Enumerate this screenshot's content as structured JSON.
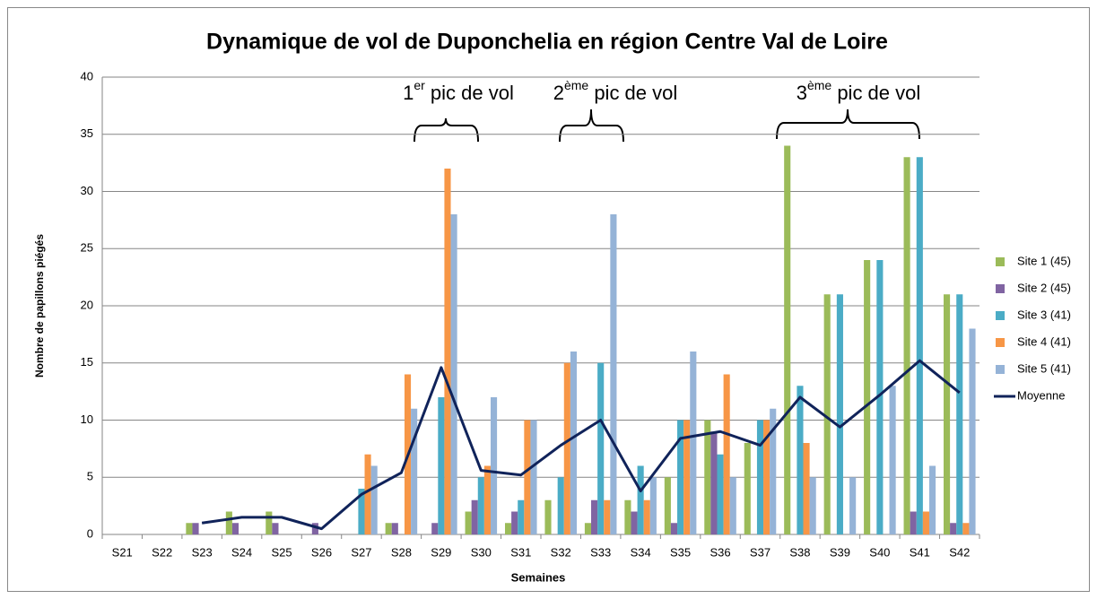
{
  "chart_data": {
    "type": "bar",
    "title": "Dynamique de vol de Duponchelia en région Centre Val de Loire",
    "x_label": "Semaines",
    "y_label": "Nombre de papillons piégés",
    "categories": [
      "S21",
      "S22",
      "S23",
      "S24",
      "S25",
      "S26",
      "S27",
      "S28",
      "S29",
      "S30",
      "S31",
      "S32",
      "S33",
      "S34",
      "S35",
      "S36",
      "S37",
      "S38",
      "S39",
      "S40",
      "S41",
      "S42"
    ],
    "series": [
      {
        "name": "Site 1 (45)",
        "color": "#9bbb59",
        "values": [
          0,
          0,
          1,
          2,
          2,
          0,
          0,
          1,
          0,
          2,
          1,
          3,
          1,
          3,
          5,
          10,
          8,
          34,
          21,
          24,
          33,
          21
        ]
      },
      {
        "name": "Site 2 (45)",
        "color": "#8064a2",
        "values": [
          0,
          0,
          1,
          1,
          1,
          1,
          0,
          1,
          1,
          3,
          2,
          0,
          3,
          2,
          1,
          9,
          0,
          0,
          0,
          0,
          2,
          1
        ]
      },
      {
        "name": "Site 3 (41)",
        "color": "#4bacc6",
        "values": [
          0,
          0,
          0,
          0,
          0,
          0,
          4,
          0,
          12,
          5,
          3,
          5,
          15,
          6,
          10,
          7,
          10,
          13,
          21,
          24,
          33,
          21
        ]
      },
      {
        "name": "Site 4 (41)",
        "color": "#f79646",
        "values": [
          0,
          0,
          0,
          0,
          0,
          0,
          7,
          14,
          32,
          6,
          10,
          15,
          3,
          3,
          10,
          14,
          10,
          8,
          0,
          0,
          2,
          1
        ]
      },
      {
        "name": "Site 5 (41)",
        "color": "#95b3d7",
        "values": [
          0,
          0,
          0,
          0,
          0,
          0,
          6,
          11,
          28,
          12,
          10,
          16,
          28,
          5,
          16,
          5,
          11,
          5,
          5,
          13,
          6,
          18
        ]
      },
      {
        "name": "Moyenne",
        "color": "#10235a",
        "line": true,
        "values": [
          null,
          null,
          1,
          1.5,
          1.5,
          0.5,
          3.5,
          5.4,
          14.6,
          5.6,
          5.2,
          7.8,
          10,
          3.8,
          8.4,
          9,
          7.8,
          12,
          9.4,
          12.2,
          15.2,
          12.4
        ]
      }
    ],
    "annotations": [
      {
        "num": "1",
        "sup": "er",
        "rest": " pic de vol"
      },
      {
        "num": "2",
        "sup": "ème",
        "rest": " pic de vol"
      },
      {
        "num": "3",
        "sup": "ème",
        "rest": " pic de vol"
      }
    ],
    "ylim": [
      0,
      40
    ],
    "yticks": [
      0,
      5,
      10,
      15,
      20,
      25,
      30,
      35,
      40
    ],
    "grid": true,
    "legend": "right"
  }
}
